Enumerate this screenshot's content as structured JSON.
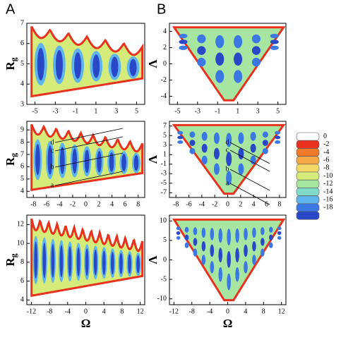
{
  "panel_labels": [
    "A",
    "B"
  ],
  "chart_data": [
    {
      "type": "contour",
      "ylabel": "R",
      "ylabel_subscript": "g",
      "xlim": [
        -5.8,
        5.8
      ],
      "xticks": [
        -5,
        -3,
        -1,
        1,
        3,
        5
      ],
      "ylim": [
        3,
        7
      ],
      "yticks": [
        3,
        4,
        5,
        6,
        7
      ]
    },
    {
      "type": "contour",
      "ylabel": "R",
      "ylabel_subscript": "g",
      "xlim": [
        -9,
        9
      ],
      "xticks": [
        -8,
        -6,
        -4,
        -2,
        0,
        2,
        4,
        6,
        8
      ],
      "ylim": [
        3.5,
        9.7
      ],
      "yticks": [
        4,
        5,
        6,
        7,
        8,
        9
      ],
      "annotations": [
        "a",
        "b",
        "c",
        "d"
      ]
    },
    {
      "type": "contour",
      "ylabel": "R",
      "ylabel_subscript": "g",
      "xlabel": "Ω",
      "xlim": [
        -13,
        13
      ],
      "xticks": [
        -12,
        -8,
        -4,
        0,
        4,
        8,
        12
      ],
      "ylim": [
        3.5,
        13
      ],
      "yticks": [
        4,
        6,
        8,
        10,
        12
      ]
    },
    {
      "type": "contour-v",
      "ylabel": "Λ",
      "xlim": [
        -5.8,
        5.8
      ],
      "xticks": [
        -5,
        -3,
        -1,
        1,
        3,
        5
      ],
      "ylim": [
        -5,
        5
      ],
      "yticks": [
        -4,
        -2,
        0,
        2,
        4
      ]
    },
    {
      "type": "contour-v",
      "ylabel": "Λ",
      "xlim": [
        -9,
        9
      ],
      "xticks": [
        -8,
        -6,
        -4,
        -2,
        0,
        2,
        4,
        6,
        8
      ],
      "ylim": [
        -8,
        8
      ],
      "yticks": [
        -7,
        -5,
        -3,
        -1,
        1,
        3,
        5,
        7
      ],
      "annotations": [
        "a",
        "b",
        "c",
        "d"
      ]
    },
    {
      "type": "contour-v",
      "ylabel": "Λ",
      "xlabel": "Ω",
      "xlim": [
        -13,
        13
      ],
      "xticks": [
        -12,
        -8,
        -4,
        0,
        4,
        8,
        12
      ],
      "ylim": [
        -11.5,
        11.5
      ],
      "yticks": [
        -10,
        -5,
        0,
        5,
        10
      ]
    }
  ],
  "colorbar": {
    "colors": [
      "#ffffff",
      "#e8321e",
      "#f07a2a",
      "#f5a848",
      "#f3d86a",
      "#d6ec7a",
      "#a6e6a0",
      "#80dcc8",
      "#5fb4ec",
      "#3c78e4",
      "#2848c8"
    ],
    "levels": [
      0,
      -2,
      -4,
      -6,
      -8,
      -10,
      -12,
      -14,
      -16,
      -18
    ]
  }
}
